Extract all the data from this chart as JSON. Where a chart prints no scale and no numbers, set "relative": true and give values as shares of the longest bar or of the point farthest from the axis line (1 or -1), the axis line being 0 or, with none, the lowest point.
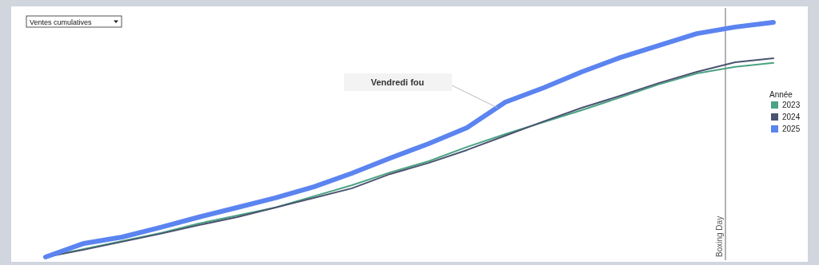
{
  "chart_data": {
    "type": "line",
    "relative": true,
    "title": "Ventes cumulatives",
    "legend_title": "Année",
    "legend": "right",
    "categories": [
      null,
      null,
      null,
      null,
      null,
      null,
      null,
      null,
      null,
      null,
      null,
      null,
      null,
      null,
      null,
      null,
      null,
      null,
      null,
      null
    ],
    "series": [
      {
        "name": "2023",
        "color": "#4aa383",
        "values": [
          0,
          0.034,
          0.068,
          0.102,
          0.143,
          0.177,
          0.211,
          0.259,
          0.306,
          0.361,
          0.408,
          0.469,
          0.524,
          0.575,
          0.626,
          0.68,
          0.735,
          0.782,
          0.81,
          0.827
        ]
      },
      {
        "name": "2024",
        "color": "#4a5370",
        "values": [
          0,
          0.031,
          0.065,
          0.099,
          0.136,
          0.17,
          0.211,
          0.252,
          0.293,
          0.354,
          0.401,
          0.456,
          0.517,
          0.578,
          0.636,
          0.687,
          0.741,
          0.789,
          0.83,
          0.847
        ]
      },
      {
        "name": "2025",
        "color": "#5b84f0",
        "values": [
          0,
          0.058,
          0.085,
          0.126,
          0.17,
          0.211,
          0.252,
          0.299,
          0.357,
          0.422,
          0.483,
          0.551,
          0.66,
          0.721,
          0.789,
          0.85,
          0.901,
          0.952,
          0.98,
          1
        ]
      }
    ],
    "annotations": [
      "Vendredi fou",
      "Boxing Day"
    ]
  }
}
